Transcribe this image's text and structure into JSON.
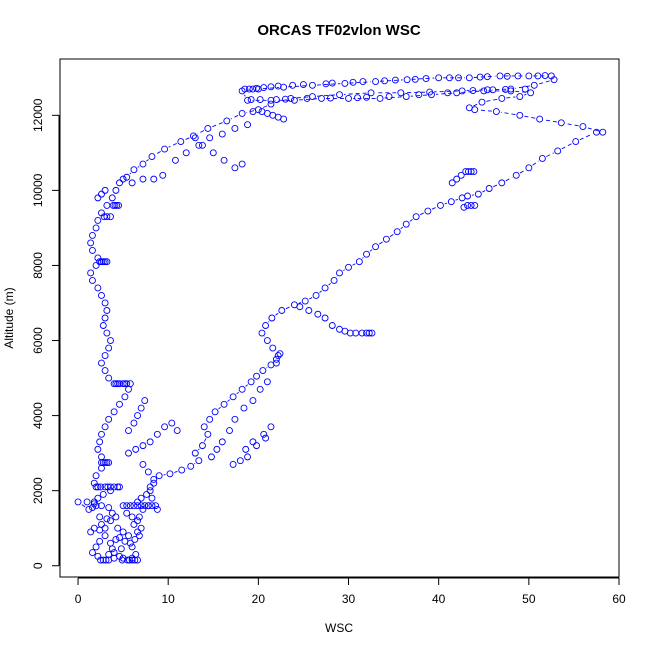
{
  "chart_data": {
    "type": "scatter",
    "title": "ORCAS TF02vlon WSC",
    "xlabel": "WSC",
    "ylabel": "Altitude (m)",
    "xlim": [
      -2,
      60
    ],
    "ylim": [
      -300,
      13500
    ],
    "xticks": [
      0,
      10,
      20,
      30,
      40,
      50,
      60
    ],
    "yticks": [
      0,
      2000,
      4000,
      6000,
      8000,
      10000,
      12000
    ],
    "xtick_labels": [
      "0",
      "10",
      "20",
      "30",
      "40",
      "50",
      "60"
    ],
    "ytick_labels": [
      "0",
      "2000",
      "4000",
      "6000",
      "8000",
      "10000",
      "12000"
    ],
    "point_color": "#0000ff",
    "marker": "open-circle",
    "line_style": "dashed-connectors",
    "grid": false,
    "legend": "none",
    "path": [
      [
        5.5,
        150
      ],
      [
        6.0,
        200
      ],
      [
        6.4,
        300
      ],
      [
        6.0,
        500
      ],
      [
        6.3,
        700
      ],
      [
        6.6,
        900
      ],
      [
        6.2,
        1100
      ],
      [
        6.8,
        1300
      ],
      [
        7.2,
        1500
      ],
      [
        7.8,
        1600
      ],
      [
        8.2,
        1800
      ],
      [
        8.0,
        2000
      ],
      [
        8.4,
        2200
      ],
      [
        9.0,
        2400
      ],
      [
        10.2,
        2450
      ],
      [
        11.5,
        2550
      ],
      [
        12.5,
        2650
      ],
      [
        13.4,
        2800
      ],
      [
        13.0,
        3000
      ],
      [
        13.8,
        3200
      ],
      [
        14.4,
        3500
      ],
      [
        14.0,
        3700
      ],
      [
        14.6,
        3900
      ],
      [
        15.2,
        4100
      ],
      [
        16.2,
        4300
      ],
      [
        17.2,
        4500
      ],
      [
        18.2,
        4700
      ],
      [
        19.2,
        4900
      ],
      [
        19.8,
        5050
      ],
      [
        20.5,
        5200
      ],
      [
        21.4,
        5350
      ],
      [
        22.0,
        5500
      ],
      [
        22.4,
        5650
      ],
      [
        21.6,
        5800
      ],
      [
        21.0,
        6000
      ],
      [
        20.4,
        6200
      ],
      [
        20.8,
        6400
      ],
      [
        21.5,
        6600
      ],
      [
        22.6,
        6800
      ],
      [
        24.0,
        6950
      ],
      [
        25.2,
        7050
      ],
      [
        26.4,
        7200
      ],
      [
        27.4,
        7400
      ],
      [
        28.4,
        7600
      ],
      [
        29.0,
        7800
      ],
      [
        30.0,
        7950
      ],
      [
        31.2,
        8100
      ],
      [
        32.0,
        8300
      ],
      [
        33.0,
        8500
      ],
      [
        34.2,
        8700
      ],
      [
        35.4,
        8900
      ],
      [
        36.4,
        9100
      ],
      [
        37.5,
        9300
      ],
      [
        38.8,
        9450
      ],
      [
        40.2,
        9600
      ],
      [
        41.4,
        9700
      ],
      [
        42.6,
        9800
      ],
      [
        43.2,
        9850
      ],
      [
        44.4,
        9900
      ],
      [
        45.6,
        10050
      ],
      [
        47.0,
        10200
      ],
      [
        48.6,
        10400
      ],
      [
        50.0,
        10600
      ],
      [
        51.5,
        10850
      ],
      [
        53.2,
        11050
      ],
      [
        55.2,
        11300
      ],
      [
        57.5,
        11550
      ],
      [
        58.2,
        11550
      ],
      [
        56.0,
        11700
      ],
      [
        53.6,
        11800
      ],
      [
        51.2,
        11900
      ],
      [
        49.0,
        12000
      ],
      [
        46.4,
        12100
      ],
      [
        44.0,
        12150
      ],
      [
        43.4,
        12200
      ],
      [
        44.8,
        12350
      ],
      [
        47.0,
        12450
      ],
      [
        49.0,
        12500
      ],
      [
        50.2,
        12600
      ],
      [
        48.0,
        12650
      ],
      [
        45.0,
        12650
      ],
      [
        42.0,
        12600
      ],
      [
        39.2,
        12550
      ],
      [
        36.4,
        12500
      ],
      [
        33.5,
        12450
      ],
      [
        30.0,
        12450
      ],
      [
        27.0,
        12450
      ],
      [
        24.0,
        12400
      ],
      [
        21.4,
        12400
      ],
      [
        18.8,
        12400
      ],
      [
        18.2,
        12650
      ],
      [
        20.0,
        12700
      ],
      [
        22.8,
        12750
      ],
      [
        26.0,
        12800
      ],
      [
        29.6,
        12850
      ],
      [
        33.0,
        12900
      ],
      [
        36.5,
        12950
      ],
      [
        40.0,
        13000
      ],
      [
        43.4,
        13000
      ],
      [
        46.8,
        13050
      ],
      [
        50.0,
        13050
      ],
      [
        52.5,
        13050
      ],
      [
        52.8,
        12950
      ],
      [
        50.6,
        12800
      ],
      [
        48.0,
        12700
      ],
      [
        45.4,
        12680
      ],
      [
        42.6,
        12650
      ],
      [
        39.0,
        12620
      ],
      [
        35.8,
        12600
      ],
      [
        32.5,
        12600
      ],
      [
        29.0,
        12550
      ],
      [
        26.0,
        12500
      ],
      [
        23.6,
        12450
      ],
      [
        21.4,
        12300
      ],
      [
        20.0,
        12150
      ],
      [
        18.2,
        12050
      ],
      [
        16.5,
        11850
      ],
      [
        14.4,
        11650
      ],
      [
        12.8,
        11450
      ],
      [
        11.4,
        11300
      ],
      [
        9.6,
        11100
      ],
      [
        8.2,
        10900
      ],
      [
        7.2,
        10700
      ],
      [
        6.2,
        10550
      ],
      [
        5.4,
        10350
      ],
      [
        4.6,
        10200
      ],
      [
        4.2,
        10000
      ],
      [
        3.8,
        9800
      ],
      [
        3.2,
        9600
      ],
      [
        2.6,
        9400
      ],
      [
        2.2,
        9200
      ],
      [
        2.0,
        9000
      ],
      [
        1.6,
        8800
      ],
      [
        1.4,
        8600
      ],
      [
        1.6,
        8400
      ],
      [
        2.2,
        8200
      ],
      [
        2.6,
        8100
      ],
      [
        2.0,
        8000
      ],
      [
        1.4,
        7800
      ],
      [
        1.6,
        7600
      ],
      [
        2.2,
        7400
      ],
      [
        2.6,
        7200
      ],
      [
        3.0,
        7000
      ],
      [
        3.2,
        6800
      ],
      [
        3.0,
        6600
      ],
      [
        2.8,
        6400
      ],
      [
        3.2,
        6200
      ],
      [
        3.6,
        6000
      ],
      [
        3.4,
        5800
      ],
      [
        3.0,
        5600
      ],
      [
        2.6,
        5400
      ],
      [
        3.0,
        5200
      ],
      [
        3.4,
        5000
      ],
      [
        4.0,
        4850
      ],
      [
        5.0,
        4850
      ],
      [
        5.8,
        4850
      ],
      [
        5.6,
        4700
      ],
      [
        5.2,
        4500
      ],
      [
        4.6,
        4300
      ],
      [
        4.0,
        4100
      ],
      [
        3.4,
        3900
      ],
      [
        3.0,
        3700
      ],
      [
        2.6,
        3500
      ],
      [
        2.4,
        3300
      ],
      [
        2.2,
        3100
      ],
      [
        2.6,
        2900
      ],
      [
        3.2,
        2750
      ],
      [
        2.6,
        2600
      ],
      [
        2.0,
        2400
      ],
      [
        1.8,
        2200
      ],
      [
        2.0,
        2100
      ],
      [
        3.0,
        2100
      ],
      [
        4.0,
        2100
      ],
      [
        3.6,
        2000
      ],
      [
        2.8,
        1900
      ],
      [
        2.2,
        1800
      ],
      [
        1.8,
        1700
      ],
      [
        2.0,
        1600
      ],
      [
        1.6,
        1550
      ],
      [
        1.2,
        1500
      ],
      [
        0.0,
        1700
      ],
      [
        1.0,
        1700
      ],
      [
        1.8,
        1650
      ],
      [
        2.6,
        1600
      ],
      [
        3.4,
        1550
      ],
      [
        3.8,
        1400
      ],
      [
        3.2,
        1250
      ],
      [
        2.6,
        1100
      ],
      [
        2.4,
        950
      ],
      [
        3.0,
        800
      ],
      [
        2.4,
        650
      ],
      [
        2.0,
        500
      ],
      [
        1.6,
        350
      ],
      [
        2.2,
        250
      ],
      [
        2.8,
        150
      ],
      [
        3.4,
        150
      ],
      [
        4.0,
        200
      ],
      [
        4.6,
        250
      ],
      [
        5.0,
        200
      ]
    ],
    "extra_points": [
      [
        3.9,
        9600
      ],
      [
        4.1,
        9600
      ],
      [
        4.3,
        9600
      ],
      [
        4.5,
        9600
      ],
      [
        3.6,
        9300
      ],
      [
        3.2,
        9300
      ],
      [
        2.9,
        9300
      ],
      [
        2.8,
        8100
      ],
      [
        3.0,
        8100
      ],
      [
        3.2,
        8100
      ],
      [
        2.4,
        8100
      ],
      [
        4.2,
        4850
      ],
      [
        4.4,
        4850
      ],
      [
        4.6,
        4850
      ],
      [
        5.2,
        4850
      ],
      [
        5.4,
        4850
      ],
      [
        2.8,
        2750
      ],
      [
        3.0,
        2750
      ],
      [
        3.4,
        2750
      ],
      [
        2.6,
        2750
      ],
      [
        2.2,
        2100
      ],
      [
        2.5,
        2100
      ],
      [
        3.3,
        2100
      ],
      [
        3.6,
        2100
      ],
      [
        4.4,
        2100
      ],
      [
        4.6,
        2100
      ],
      [
        5.0,
        1600
      ],
      [
        5.4,
        1600
      ],
      [
        5.8,
        1600
      ],
      [
        6.2,
        1600
      ],
      [
        6.6,
        1600
      ],
      [
        7.0,
        1600
      ],
      [
        7.4,
        1600
      ],
      [
        7.8,
        1600
      ],
      [
        8.2,
        1600
      ],
      [
        8.6,
        1600
      ],
      [
        8.8,
        1500
      ],
      [
        6.0,
        150
      ],
      [
        6.3,
        150
      ],
      [
        6.6,
        150
      ],
      [
        5.7,
        150
      ],
      [
        4.9,
        150
      ],
      [
        3.1,
        150
      ],
      [
        2.5,
        150
      ],
      [
        32.0,
        6200
      ],
      [
        32.3,
        6200
      ],
      [
        32.6,
        6200
      ],
      [
        31.5,
        6200
      ],
      [
        30.8,
        6200
      ],
      [
        30.2,
        6200
      ],
      [
        29.6,
        6250
      ],
      [
        29.0,
        6300
      ],
      [
        28.2,
        6400
      ],
      [
        27.4,
        6600
      ],
      [
        26.6,
        6700
      ],
      [
        25.6,
        6800
      ],
      [
        24.6,
        6900
      ],
      [
        43.0,
        10500
      ],
      [
        43.3,
        10500
      ],
      [
        43.6,
        10500
      ],
      [
        43.9,
        10500
      ],
      [
        42.5,
        10400
      ],
      [
        42.0,
        10300
      ],
      [
        41.5,
        10200
      ],
      [
        43.2,
        9600
      ],
      [
        43.6,
        9600
      ],
      [
        44.0,
        9600
      ],
      [
        42.8,
        9550
      ],
      [
        18.5,
        12700
      ],
      [
        19.0,
        12700
      ],
      [
        19.4,
        12700
      ],
      [
        19.8,
        12720
      ],
      [
        20.6,
        12740
      ],
      [
        21.4,
        12760
      ],
      [
        22.2,
        12780
      ],
      [
        23.8,
        12800
      ],
      [
        25.0,
        12820
      ],
      [
        27.5,
        12840
      ],
      [
        28.2,
        12860
      ],
      [
        30.5,
        12880
      ],
      [
        31.6,
        12900
      ],
      [
        34.0,
        12920
      ],
      [
        35.2,
        12940
      ],
      [
        37.4,
        12960
      ],
      [
        38.6,
        12980
      ],
      [
        41.2,
        13000
      ],
      [
        42.2,
        13000
      ],
      [
        44.6,
        13020
      ],
      [
        45.4,
        13030
      ],
      [
        47.6,
        13040
      ],
      [
        48.8,
        13050
      ],
      [
        51.0,
        13050
      ],
      [
        51.8,
        13060
      ],
      [
        19.2,
        12420
      ],
      [
        20.2,
        12420
      ],
      [
        22.0,
        12420
      ],
      [
        23.0,
        12430
      ],
      [
        25.4,
        12450
      ],
      [
        28.0,
        12460
      ],
      [
        31.0,
        12470
      ],
      [
        32.0,
        12480
      ],
      [
        34.5,
        12500
      ],
      [
        37.8,
        12550
      ],
      [
        41.0,
        12600
      ],
      [
        43.8,
        12660
      ],
      [
        46.0,
        12680
      ],
      [
        47.4,
        12690
      ],
      [
        49.6,
        12700
      ],
      [
        20.4,
        12100
      ],
      [
        21.0,
        12050
      ],
      [
        21.6,
        12000
      ],
      [
        22.2,
        11950
      ],
      [
        22.8,
        11900
      ],
      [
        19.4,
        12100
      ],
      [
        13.0,
        11400
      ],
      [
        13.8,
        11200
      ],
      [
        15.0,
        11000
      ],
      [
        16.2,
        10800
      ],
      [
        17.4,
        10600
      ],
      [
        18.2,
        10700
      ],
      [
        22.2,
        5600
      ],
      [
        22.0,
        5400
      ],
      [
        21.0,
        4900
      ],
      [
        20.2,
        4700
      ],
      [
        19.4,
        4400
      ],
      [
        18.4,
        4200
      ],
      [
        17.4,
        3900
      ],
      [
        16.8,
        3600
      ],
      [
        16.0,
        3300
      ],
      [
        15.4,
        3100
      ],
      [
        14.8,
        2900
      ],
      [
        18.6,
        3100
      ],
      [
        19.4,
        3300
      ],
      [
        20.6,
        3500
      ],
      [
        21.4,
        3700
      ],
      [
        20.8,
        3400
      ],
      [
        19.8,
        3200
      ],
      [
        18.8,
        2900
      ],
      [
        18.0,
        2800
      ],
      [
        17.2,
        2700
      ],
      [
        11.0,
        3600
      ],
      [
        10.4,
        3800
      ],
      [
        9.6,
        3700
      ],
      [
        8.8,
        3500
      ],
      [
        8.0,
        3300
      ],
      [
        7.2,
        3200
      ],
      [
        6.4,
        3100
      ],
      [
        5.6,
        3000
      ],
      [
        7.4,
        4400
      ],
      [
        7.0,
        4200
      ],
      [
        6.6,
        4000
      ],
      [
        6.2,
        3800
      ],
      [
        5.6,
        3600
      ],
      [
        7.2,
        2700
      ],
      [
        7.8,
        2500
      ],
      [
        8.4,
        2300
      ],
      [
        8.0,
        2100
      ],
      [
        7.6,
        1900
      ],
      [
        7.0,
        1800
      ],
      [
        6.6,
        1700
      ],
      [
        5.4,
        1400
      ],
      [
        6.0,
        1300
      ],
      [
        6.6,
        1200
      ],
      [
        7.0,
        1000
      ],
      [
        6.8,
        800
      ],
      [
        5.8,
        600
      ],
      [
        4.8,
        450
      ],
      [
        4.0,
        350
      ],
      [
        3.4,
        300
      ],
      [
        4.4,
        1000
      ],
      [
        5.0,
        900
      ],
      [
        5.6,
        800
      ],
      [
        4.2,
        700
      ],
      [
        3.6,
        600
      ],
      [
        3.8,
        450
      ],
      [
        4.6,
        750
      ],
      [
        5.2,
        650
      ],
      [
        2.2,
        9800
      ],
      [
        2.6,
        9900
      ],
      [
        3.0,
        10000
      ],
      [
        5.0,
        10300
      ],
      [
        6.0,
        10200
      ],
      [
        7.2,
        10300
      ],
      [
        8.4,
        10300
      ],
      [
        9.4,
        10400
      ],
      [
        10.8,
        10800
      ],
      [
        12.0,
        11000
      ],
      [
        13.4,
        11200
      ],
      [
        14.6,
        11400
      ],
      [
        16.0,
        11500
      ],
      [
        17.4,
        11650
      ],
      [
        18.8,
        11750
      ],
      [
        2.4,
        1300
      ],
      [
        3.0,
        1000
      ],
      [
        3.6,
        1200
      ],
      [
        4.2,
        1300
      ],
      [
        1.4,
        900
      ],
      [
        1.8,
        1000
      ]
    ]
  }
}
